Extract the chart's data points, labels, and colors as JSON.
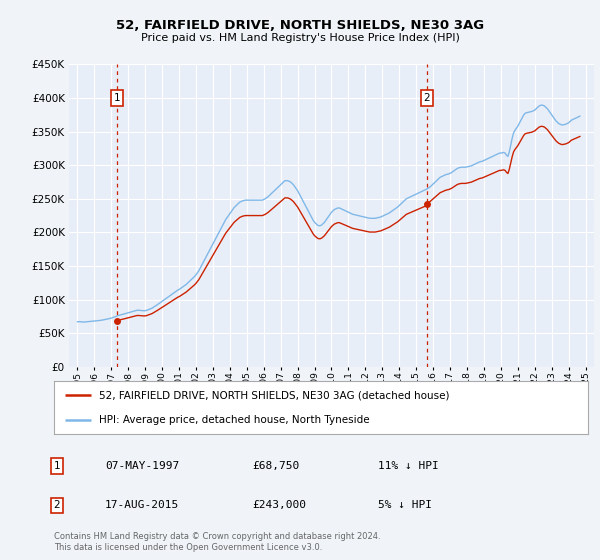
{
  "title": "52, FAIRFIELD DRIVE, NORTH SHIELDS, NE30 3AG",
  "subtitle": "Price paid vs. HM Land Registry's House Price Index (HPI)",
  "legend_label_red": "52, FAIRFIELD DRIVE, NORTH SHIELDS, NE30 3AG (detached house)",
  "legend_label_blue": "HPI: Average price, detached house, North Tyneside",
  "annotation1_date": "07-MAY-1997",
  "annotation1_price": "£68,750",
  "annotation1_hpi": "11% ↓ HPI",
  "annotation2_date": "17-AUG-2015",
  "annotation2_price": "£243,000",
  "annotation2_hpi": "5% ↓ HPI",
  "vline1_x": 1997.35,
  "vline2_x": 2015.62,
  "ylim": [
    0,
    450000
  ],
  "xlim": [
    1994.5,
    2025.5
  ],
  "background_color": "#f0f4f8",
  "plot_bg_color": "#e8eef8",
  "grid_color": "#ffffff",
  "red_color": "#cc2200",
  "blue_color": "#7fb8e8",
  "footnote1": "Contains HM Land Registry data © Crown copyright and database right 2024.",
  "footnote2": "This data is licensed under the Open Government Licence v3.0.",
  "hpi_data": [
    [
      1995.0,
      67000
    ],
    [
      1995.083,
      67200
    ],
    [
      1995.167,
      67100
    ],
    [
      1995.25,
      66800
    ],
    [
      1995.333,
      66600
    ],
    [
      1995.417,
      66700
    ],
    [
      1995.5,
      66900
    ],
    [
      1995.583,
      67100
    ],
    [
      1995.667,
      67300
    ],
    [
      1995.75,
      67500
    ],
    [
      1995.833,
      67800
    ],
    [
      1995.917,
      68000
    ],
    [
      1996.0,
      68200
    ],
    [
      1996.083,
      68400
    ],
    [
      1996.167,
      68600
    ],
    [
      1996.25,
      68800
    ],
    [
      1996.333,
      69000
    ],
    [
      1996.417,
      69300
    ],
    [
      1996.5,
      69700
    ],
    [
      1996.583,
      70100
    ],
    [
      1996.667,
      70500
    ],
    [
      1996.75,
      71000
    ],
    [
      1996.833,
      71500
    ],
    [
      1996.917,
      72000
    ],
    [
      1997.0,
      72500
    ],
    [
      1997.083,
      73200
    ],
    [
      1997.167,
      74000
    ],
    [
      1997.25,
      74800
    ],
    [
      1997.333,
      75600
    ],
    [
      1997.417,
      76400
    ],
    [
      1997.5,
      77000
    ],
    [
      1997.583,
      77500
    ],
    [
      1997.667,
      78000
    ],
    [
      1997.75,
      78600
    ],
    [
      1997.833,
      79200
    ],
    [
      1997.917,
      79800
    ],
    [
      1998.0,
      80400
    ],
    [
      1998.083,
      81000
    ],
    [
      1998.167,
      81600
    ],
    [
      1998.25,
      82200
    ],
    [
      1998.333,
      82800
    ],
    [
      1998.417,
      83400
    ],
    [
      1998.5,
      84000
    ],
    [
      1998.583,
      84200
    ],
    [
      1998.667,
      84000
    ],
    [
      1998.75,
      83800
    ],
    [
      1998.833,
      83600
    ],
    [
      1998.917,
      83400
    ],
    [
      1999.0,
      83500
    ],
    [
      1999.083,
      84000
    ],
    [
      1999.167,
      84800
    ],
    [
      1999.25,
      85600
    ],
    [
      1999.333,
      86500
    ],
    [
      1999.417,
      87500
    ],
    [
      1999.5,
      88800
    ],
    [
      1999.583,
      90200
    ],
    [
      1999.667,
      91600
    ],
    [
      1999.75,
      93000
    ],
    [
      1999.833,
      94400
    ],
    [
      1999.917,
      96000
    ],
    [
      2000.0,
      97500
    ],
    [
      2000.083,
      99000
    ],
    [
      2000.167,
      100500
    ],
    [
      2000.25,
      102000
    ],
    [
      2000.333,
      103500
    ],
    [
      2000.417,
      105000
    ],
    [
      2000.5,
      106500
    ],
    [
      2000.583,
      108000
    ],
    [
      2000.667,
      109500
    ],
    [
      2000.75,
      111000
    ],
    [
      2000.833,
      112500
    ],
    [
      2000.917,
      114000
    ],
    [
      2001.0,
      115000
    ],
    [
      2001.083,
      116500
    ],
    [
      2001.167,
      118000
    ],
    [
      2001.25,
      119500
    ],
    [
      2001.333,
      121000
    ],
    [
      2001.417,
      122500
    ],
    [
      2001.5,
      124500
    ],
    [
      2001.583,
      126500
    ],
    [
      2001.667,
      128500
    ],
    [
      2001.75,
      130500
    ],
    [
      2001.833,
      132500
    ],
    [
      2001.917,
      134500
    ],
    [
      2002.0,
      137000
    ],
    [
      2002.083,
      140000
    ],
    [
      2002.167,
      143000
    ],
    [
      2002.25,
      147000
    ],
    [
      2002.333,
      151000
    ],
    [
      2002.417,
      155000
    ],
    [
      2002.5,
      159000
    ],
    [
      2002.583,
      163000
    ],
    [
      2002.667,
      167000
    ],
    [
      2002.75,
      171000
    ],
    [
      2002.833,
      175000
    ],
    [
      2002.917,
      179000
    ],
    [
      2003.0,
      183000
    ],
    [
      2003.083,
      187000
    ],
    [
      2003.167,
      191000
    ],
    [
      2003.25,
      195000
    ],
    [
      2003.333,
      199000
    ],
    [
      2003.417,
      203000
    ],
    [
      2003.5,
      207000
    ],
    [
      2003.583,
      211000
    ],
    [
      2003.667,
      215000
    ],
    [
      2003.75,
      219000
    ],
    [
      2003.833,
      222000
    ],
    [
      2003.917,
      225000
    ],
    [
      2004.0,
      228000
    ],
    [
      2004.083,
      231000
    ],
    [
      2004.167,
      234000
    ],
    [
      2004.25,
      237000
    ],
    [
      2004.333,
      239000
    ],
    [
      2004.417,
      241000
    ],
    [
      2004.5,
      243000
    ],
    [
      2004.583,
      245000
    ],
    [
      2004.667,
      246000
    ],
    [
      2004.75,
      247000
    ],
    [
      2004.833,
      247500
    ],
    [
      2004.917,
      248000
    ],
    [
      2005.0,
      248000
    ],
    [
      2005.083,
      248000
    ],
    [
      2005.167,
      248000
    ],
    [
      2005.25,
      248000
    ],
    [
      2005.333,
      248000
    ],
    [
      2005.417,
      248000
    ],
    [
      2005.5,
      248000
    ],
    [
      2005.583,
      248000
    ],
    [
      2005.667,
      248000
    ],
    [
      2005.75,
      248000
    ],
    [
      2005.833,
      248000
    ],
    [
      2005.917,
      248000
    ],
    [
      2006.0,
      249000
    ],
    [
      2006.083,
      250000
    ],
    [
      2006.167,
      251500
    ],
    [
      2006.25,
      253000
    ],
    [
      2006.333,
      255000
    ],
    [
      2006.417,
      257000
    ],
    [
      2006.5,
      259000
    ],
    [
      2006.583,
      261000
    ],
    [
      2006.667,
      263000
    ],
    [
      2006.75,
      265000
    ],
    [
      2006.833,
      267000
    ],
    [
      2006.917,
      269000
    ],
    [
      2007.0,
      271000
    ],
    [
      2007.083,
      273000
    ],
    [
      2007.167,
      275000
    ],
    [
      2007.25,
      277000
    ],
    [
      2007.333,
      277000
    ],
    [
      2007.417,
      277000
    ],
    [
      2007.5,
      276000
    ],
    [
      2007.583,
      275000
    ],
    [
      2007.667,
      273000
    ],
    [
      2007.75,
      271000
    ],
    [
      2007.833,
      268000
    ],
    [
      2007.917,
      265000
    ],
    [
      2008.0,
      262000
    ],
    [
      2008.083,
      258000
    ],
    [
      2008.167,
      254000
    ],
    [
      2008.25,
      250000
    ],
    [
      2008.333,
      246000
    ],
    [
      2008.417,
      242000
    ],
    [
      2008.5,
      238000
    ],
    [
      2008.583,
      234000
    ],
    [
      2008.667,
      230000
    ],
    [
      2008.75,
      226000
    ],
    [
      2008.833,
      222000
    ],
    [
      2008.917,
      218000
    ],
    [
      2009.0,
      215000
    ],
    [
      2009.083,
      213000
    ],
    [
      2009.167,
      211000
    ],
    [
      2009.25,
      210000
    ],
    [
      2009.333,
      210000
    ],
    [
      2009.417,
      211000
    ],
    [
      2009.5,
      213000
    ],
    [
      2009.583,
      215000
    ],
    [
      2009.667,
      218000
    ],
    [
      2009.75,
      221000
    ],
    [
      2009.833,
      224000
    ],
    [
      2009.917,
      227000
    ],
    [
      2010.0,
      230000
    ],
    [
      2010.083,
      232000
    ],
    [
      2010.167,
      234000
    ],
    [
      2010.25,
      235000
    ],
    [
      2010.333,
      236000
    ],
    [
      2010.417,
      236500
    ],
    [
      2010.5,
      236000
    ],
    [
      2010.583,
      235000
    ],
    [
      2010.667,
      234000
    ],
    [
      2010.75,
      233000
    ],
    [
      2010.833,
      232000
    ],
    [
      2010.917,
      231000
    ],
    [
      2011.0,
      230000
    ],
    [
      2011.083,
      229000
    ],
    [
      2011.167,
      228000
    ],
    [
      2011.25,
      227000
    ],
    [
      2011.333,
      226500
    ],
    [
      2011.417,
      226000
    ],
    [
      2011.5,
      225500
    ],
    [
      2011.583,
      225000
    ],
    [
      2011.667,
      224500
    ],
    [
      2011.75,
      224000
    ],
    [
      2011.833,
      223500
    ],
    [
      2011.917,
      223000
    ],
    [
      2012.0,
      222500
    ],
    [
      2012.083,
      222000
    ],
    [
      2012.167,
      221500
    ],
    [
      2012.25,
      221000
    ],
    [
      2012.333,
      221000
    ],
    [
      2012.417,
      221000
    ],
    [
      2012.5,
      221000
    ],
    [
      2012.583,
      221000
    ],
    [
      2012.667,
      221500
    ],
    [
      2012.75,
      222000
    ],
    [
      2012.833,
      222500
    ],
    [
      2012.917,
      223000
    ],
    [
      2013.0,
      224000
    ],
    [
      2013.083,
      225000
    ],
    [
      2013.167,
      226000
    ],
    [
      2013.25,
      227000
    ],
    [
      2013.333,
      228000
    ],
    [
      2013.417,
      229000
    ],
    [
      2013.5,
      230500
    ],
    [
      2013.583,
      232000
    ],
    [
      2013.667,
      233500
    ],
    [
      2013.75,
      235000
    ],
    [
      2013.833,
      236500
    ],
    [
      2013.917,
      238000
    ],
    [
      2014.0,
      240000
    ],
    [
      2014.083,
      242000
    ],
    [
      2014.167,
      244000
    ],
    [
      2014.25,
      246000
    ],
    [
      2014.333,
      248000
    ],
    [
      2014.417,
      250000
    ],
    [
      2014.5,
      251000
    ],
    [
      2014.583,
      252000
    ],
    [
      2014.667,
      253000
    ],
    [
      2014.75,
      254000
    ],
    [
      2014.833,
      255000
    ],
    [
      2014.917,
      256000
    ],
    [
      2015.0,
      257000
    ],
    [
      2015.083,
      258000
    ],
    [
      2015.167,
      259000
    ],
    [
      2015.25,
      260000
    ],
    [
      2015.333,
      261000
    ],
    [
      2015.417,
      262000
    ],
    [
      2015.5,
      263000
    ],
    [
      2015.583,
      264000
    ],
    [
      2015.667,
      265000
    ],
    [
      2015.75,
      266500
    ],
    [
      2015.833,
      268000
    ],
    [
      2015.917,
      270000
    ],
    [
      2016.0,
      272000
    ],
    [
      2016.083,
      274000
    ],
    [
      2016.167,
      276000
    ],
    [
      2016.25,
      278000
    ],
    [
      2016.333,
      280000
    ],
    [
      2016.417,
      282000
    ],
    [
      2016.5,
      283000
    ],
    [
      2016.583,
      284000
    ],
    [
      2016.667,
      285000
    ],
    [
      2016.75,
      286000
    ],
    [
      2016.833,
      286500
    ],
    [
      2016.917,
      287000
    ],
    [
      2017.0,
      288000
    ],
    [
      2017.083,
      289000
    ],
    [
      2017.167,
      290500
    ],
    [
      2017.25,
      292000
    ],
    [
      2017.333,
      293500
    ],
    [
      2017.417,
      295000
    ],
    [
      2017.5,
      296000
    ],
    [
      2017.583,
      296500
    ],
    [
      2017.667,
      297000
    ],
    [
      2017.75,
      297000
    ],
    [
      2017.833,
      297000
    ],
    [
      2017.917,
      297000
    ],
    [
      2018.0,
      297500
    ],
    [
      2018.083,
      298000
    ],
    [
      2018.167,
      298500
    ],
    [
      2018.25,
      299000
    ],
    [
      2018.333,
      300000
    ],
    [
      2018.417,
      301000
    ],
    [
      2018.5,
      302000
    ],
    [
      2018.583,
      303000
    ],
    [
      2018.667,
      304000
    ],
    [
      2018.75,
      305000
    ],
    [
      2018.833,
      305500
    ],
    [
      2018.917,
      306000
    ],
    [
      2019.0,
      307000
    ],
    [
      2019.083,
      308000
    ],
    [
      2019.167,
      309000
    ],
    [
      2019.25,
      310000
    ],
    [
      2019.333,
      311000
    ],
    [
      2019.417,
      312000
    ],
    [
      2019.5,
      313000
    ],
    [
      2019.583,
      314000
    ],
    [
      2019.667,
      315000
    ],
    [
      2019.75,
      316000
    ],
    [
      2019.833,
      317000
    ],
    [
      2019.917,
      318000
    ],
    [
      2020.0,
      318000
    ],
    [
      2020.083,
      318500
    ],
    [
      2020.167,
      319000
    ],
    [
      2020.25,
      318000
    ],
    [
      2020.333,
      315000
    ],
    [
      2020.417,
      313000
    ],
    [
      2020.5,
      320000
    ],
    [
      2020.583,
      330000
    ],
    [
      2020.667,
      340000
    ],
    [
      2020.75,
      348000
    ],
    [
      2020.833,
      352000
    ],
    [
      2020.917,
      355000
    ],
    [
      2021.0,
      358000
    ],
    [
      2021.083,
      362000
    ],
    [
      2021.167,
      366000
    ],
    [
      2021.25,
      370000
    ],
    [
      2021.333,
      374000
    ],
    [
      2021.417,
      377000
    ],
    [
      2021.5,
      378000
    ],
    [
      2021.583,
      378500
    ],
    [
      2021.667,
      379000
    ],
    [
      2021.75,
      379500
    ],
    [
      2021.833,
      380000
    ],
    [
      2021.917,
      381000
    ],
    [
      2022.0,
      382000
    ],
    [
      2022.083,
      384000
    ],
    [
      2022.167,
      386000
    ],
    [
      2022.25,
      388000
    ],
    [
      2022.333,
      389000
    ],
    [
      2022.417,
      389500
    ],
    [
      2022.5,
      389000
    ],
    [
      2022.583,
      388000
    ],
    [
      2022.667,
      386000
    ],
    [
      2022.75,
      384000
    ],
    [
      2022.833,
      381000
    ],
    [
      2022.917,
      378000
    ],
    [
      2023.0,
      375000
    ],
    [
      2023.083,
      372000
    ],
    [
      2023.167,
      369000
    ],
    [
      2023.25,
      366000
    ],
    [
      2023.333,
      364000
    ],
    [
      2023.417,
      362000
    ],
    [
      2023.5,
      361000
    ],
    [
      2023.583,
      360000
    ],
    [
      2023.667,
      360000
    ],
    [
      2023.75,
      360500
    ],
    [
      2023.833,
      361000
    ],
    [
      2023.917,
      362000
    ],
    [
      2024.0,
      363000
    ],
    [
      2024.083,
      365000
    ],
    [
      2024.167,
      367000
    ],
    [
      2024.25,
      368000
    ],
    [
      2024.333,
      369000
    ],
    [
      2024.417,
      370000
    ],
    [
      2024.5,
      371000
    ],
    [
      2024.583,
      372000
    ],
    [
      2024.667,
      373000
    ]
  ],
  "sale1_x": 1997.35,
  "sale1_y": 68750,
  "sale2_x": 2015.62,
  "sale2_y": 243000
}
